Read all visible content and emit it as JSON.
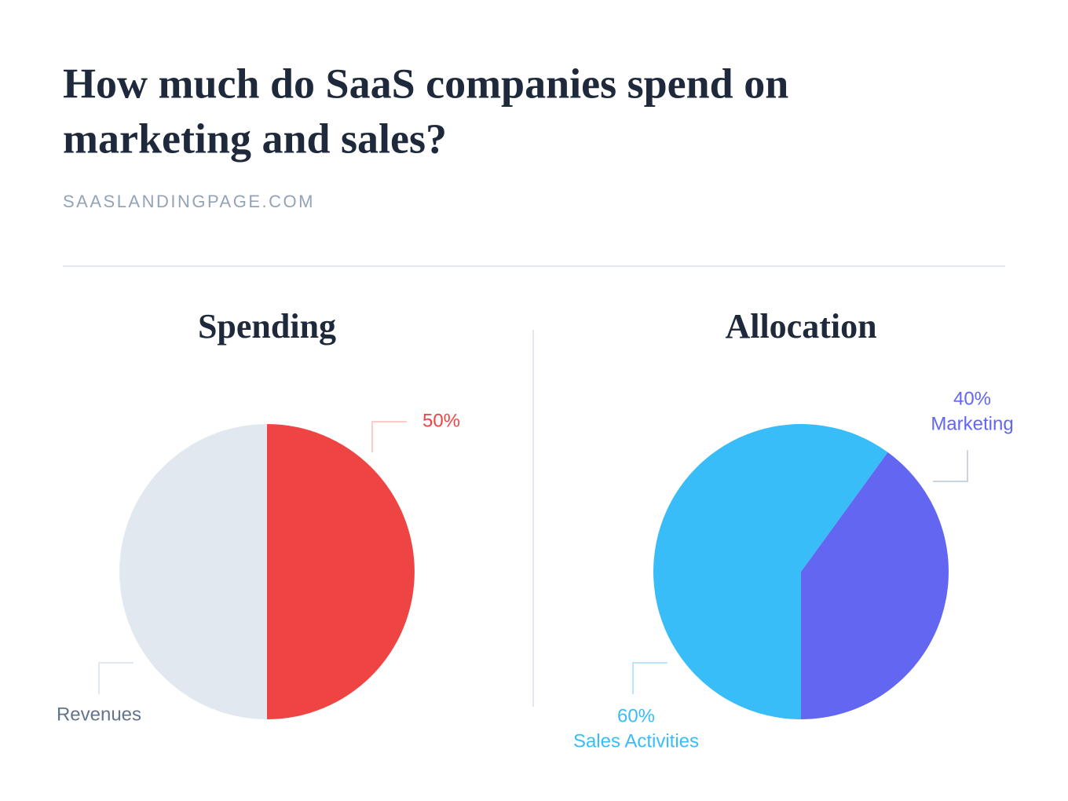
{
  "header": {
    "title": [
      "How much do SaaS companies spend on",
      "marketing and sales?"
    ],
    "source": "SAASLANDINGPAGE.COM"
  },
  "chart_data": [
    {
      "type": "pie",
      "title": "Spending",
      "categories": [
        null,
        "Revenues"
      ],
      "values": [
        50,
        50
      ],
      "value_labels": [
        "50%",
        null
      ],
      "colors": [
        "#ef4444",
        "#e2e8f0"
      ]
    },
    {
      "type": "pie",
      "title": "Allocation",
      "categories": [
        "Marketing",
        "Sales Activities"
      ],
      "values": [
        40,
        60
      ],
      "value_labels": [
        "40%",
        "60%"
      ],
      "colors": [
        "#6366f1",
        "#38bdf8"
      ]
    }
  ]
}
